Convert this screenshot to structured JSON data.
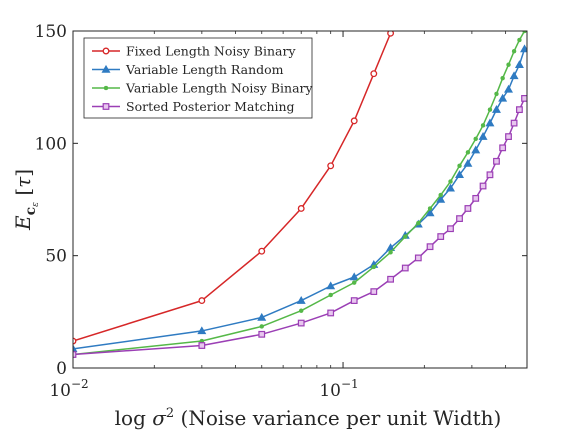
{
  "chart_data": {
    "type": "line",
    "xlabel": "log σ² (Noise variance per unit Width)",
    "ylabel": "E_c_ε[τ]",
    "x_scale": "log",
    "xlim": [
      0.01,
      0.48
    ],
    "ylim": [
      0,
      150
    ],
    "x_ticks": [
      {
        "value": 0.01,
        "base": "10",
        "exp": "−2"
      },
      {
        "value": 0.1,
        "base": "10",
        "exp": "−1"
      }
    ],
    "y_ticks": [
      0,
      50,
      100,
      150
    ],
    "legend_position": "top-left",
    "series": [
      {
        "name": "Fixed Length Noisy Binary",
        "color": "#d62728",
        "marker": "circle",
        "x": [
          0.01,
          0.03,
          0.05,
          0.07,
          0.09,
          0.11,
          0.13,
          0.15
        ],
        "y": [
          12,
          30,
          52,
          71,
          90,
          110,
          131,
          149
        ]
      },
      {
        "name": "Variable Length Random",
        "color": "#2f7bc2",
        "marker": "triangle",
        "x": [
          0.01,
          0.03,
          0.05,
          0.07,
          0.09,
          0.11,
          0.13,
          0.15,
          0.17,
          0.19,
          0.21,
          0.23,
          0.25,
          0.27,
          0.29,
          0.31,
          0.33,
          0.35,
          0.37,
          0.39,
          0.41,
          0.43,
          0.45,
          0.47
        ],
        "y": [
          8.5,
          16.5,
          22.5,
          30,
          36.5,
          40.5,
          46,
          53.5,
          59,
          64,
          69,
          75,
          80,
          86,
          91,
          97,
          103,
          109,
          115,
          120,
          124,
          130,
          135,
          142
        ]
      },
      {
        "name": "Variable Length Noisy Binary",
        "color": "#55b848",
        "marker": "dot",
        "x": [
          0.01,
          0.03,
          0.05,
          0.07,
          0.09,
          0.11,
          0.13,
          0.15,
          0.17,
          0.19,
          0.21,
          0.23,
          0.25,
          0.27,
          0.29,
          0.31,
          0.33,
          0.35,
          0.37,
          0.39,
          0.41,
          0.43,
          0.45,
          0.47
        ],
        "y": [
          6,
          12,
          18.5,
          25.5,
          32.5,
          38,
          45,
          51.5,
          58.5,
          64.5,
          71,
          77,
          83,
          90,
          96,
          102,
          108,
          115,
          122,
          129,
          135,
          141,
          146,
          150
        ]
      },
      {
        "name": "Sorted Posterior Matching",
        "color": "#9b3fb5",
        "marker": "square",
        "x": [
          0.01,
          0.03,
          0.05,
          0.07,
          0.09,
          0.11,
          0.13,
          0.15,
          0.17,
          0.19,
          0.21,
          0.23,
          0.25,
          0.27,
          0.29,
          0.31,
          0.33,
          0.35,
          0.37,
          0.39,
          0.41,
          0.43,
          0.45,
          0.47
        ],
        "y": [
          6,
          10,
          15,
          20,
          24.5,
          30,
          34,
          39.5,
          44.5,
          49,
          54,
          58.5,
          62,
          66.5,
          71,
          75.5,
          81,
          86,
          92,
          98,
          103,
          109,
          115,
          120
        ]
      }
    ]
  }
}
